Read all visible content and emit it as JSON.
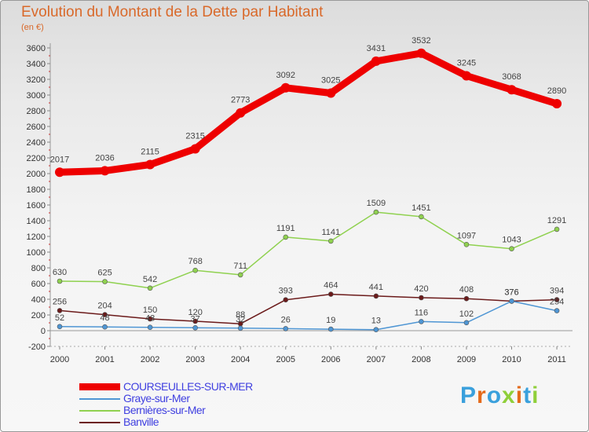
{
  "title": "Evolution du Montant de la Dette par Habitant",
  "subtitle": "(en €)",
  "logo": "Proxiti",
  "chart_data": {
    "type": "line",
    "x": [
      "2000",
      "2001",
      "2002",
      "2003",
      "2004",
      "2005",
      "2006",
      "2007",
      "2008",
      "2009",
      "2010",
      "2011"
    ],
    "ylim": [
      -200,
      3600
    ],
    "yticks": [
      -200,
      0,
      200,
      400,
      600,
      800,
      1000,
      1200,
      1400,
      1600,
      1800,
      2000,
      2200,
      2400,
      2600,
      2800,
      3000,
      3200,
      3400,
      3600
    ],
    "grid": false,
    "legend_position": "bottom-left",
    "series": [
      {
        "name": "COURSEULLES-SUR-MER",
        "color": "#ee0000",
        "values": [
          2017,
          2036,
          2115,
          2315,
          2773,
          3092,
          3025,
          3431,
          3532,
          3245,
          3068,
          2890
        ]
      },
      {
        "name": "Graye-sur-Mer",
        "color": "#4f96d4",
        "values": [
          52,
          48,
          43,
          37,
          32,
          26,
          19,
          13,
          116,
          102,
          376,
          254
        ]
      },
      {
        "name": "Bernières-sur-Mer",
        "color": "#8fd14f",
        "values": [
          630,
          625,
          542,
          768,
          711,
          1191,
          1141,
          1509,
          1451,
          1097,
          1043,
          1291
        ]
      },
      {
        "name": "Banville",
        "color": "#6b1a1a",
        "values": [
          256,
          204,
          150,
          120,
          88,
          393,
          464,
          441,
          420,
          408,
          376,
          394
        ]
      }
    ]
  }
}
